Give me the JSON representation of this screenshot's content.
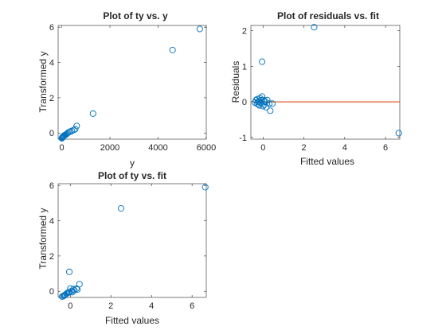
{
  "colors": {
    "markers": "#0072bd",
    "reference_line": "#d95319",
    "axes": "#262626",
    "background": "#ffffff"
  },
  "chart_data": [
    {
      "type": "scatter",
      "title": "Plot of ty vs. y",
      "xlabel": "y",
      "ylabel": "Transformed y",
      "xlim": [
        -150,
        6000
      ],
      "ylim": [
        -0.35,
        6.1
      ],
      "xticks": [
        0,
        2000,
        4000,
        6000
      ],
      "yticks": [
        0,
        2,
        4,
        6
      ],
      "xtick_labels": [
        "0",
        "2000",
        "4000",
        "6000"
      ],
      "ytick_labels": [
        "0",
        "2",
        "4",
        "6"
      ],
      "grid": false,
      "series": [
        {
          "marker": "circle",
          "x": [
            5,
            15,
            25,
            40,
            60,
            80,
            100,
            130,
            160,
            200,
            250,
            300,
            350,
            420,
            500,
            560,
            620,
            1300,
            4600,
            5730
          ],
          "y": [
            -0.3,
            -0.28,
            -0.25,
            -0.22,
            -0.2,
            -0.17,
            -0.15,
            -0.12,
            -0.1,
            -0.06,
            0.0,
            0.05,
            0.08,
            0.12,
            0.17,
            0.22,
            0.4,
            1.1,
            4.7,
            5.9
          ]
        }
      ]
    },
    {
      "type": "scatter",
      "title": "Plot of residuals vs. fit",
      "xlabel": "Fitted values",
      "ylabel": "Residuals",
      "xlim": [
        -0.6,
        6.7
      ],
      "ylim": [
        -1.05,
        2.15
      ],
      "xticks": [
        0,
        2,
        4,
        6
      ],
      "yticks": [
        -1,
        0,
        1,
        2
      ],
      "xtick_labels": [
        "0",
        "2",
        "4",
        "6"
      ],
      "ytick_labels": [
        "-1",
        "0",
        "1",
        "2"
      ],
      "grid": false,
      "reference_line": {
        "y": 0
      },
      "series": [
        {
          "marker": "circle",
          "x": [
            -0.4,
            -0.35,
            -0.3,
            -0.28,
            -0.25,
            -0.22,
            -0.2,
            -0.18,
            -0.15,
            -0.12,
            -0.1,
            -0.05,
            0.0,
            0.02,
            0.05,
            0.08,
            0.1,
            0.15,
            0.2,
            0.3,
            0.35,
            0.45,
            -0.05,
            2.5,
            6.65
          ],
          "y": [
            -0.02,
            0.05,
            -0.05,
            0.08,
            0.0,
            -0.08,
            0.03,
            -0.1,
            0.1,
            -0.03,
            0.05,
            0.15,
            -0.12,
            0.05,
            -0.08,
            0.02,
            0.0,
            -0.15,
            0.05,
            -0.05,
            -0.25,
            -0.05,
            1.13,
            2.1,
            -0.88
          ]
        }
      ]
    },
    {
      "type": "scatter",
      "title": "Plot of ty vs. fit",
      "xlabel": "Fitted values",
      "ylabel": "Transformed y",
      "xlim": [
        -0.6,
        6.7
      ],
      "ylim": [
        -0.35,
        6.1
      ],
      "xticks": [
        0,
        2,
        4,
        6
      ],
      "yticks": [
        0,
        2,
        4,
        6
      ],
      "xtick_labels": [
        "0",
        "2",
        "4",
        "6"
      ],
      "ytick_labels": [
        "0",
        "2",
        "4",
        "6"
      ],
      "grid": false,
      "series": [
        {
          "marker": "circle",
          "x": [
            -0.4,
            -0.35,
            -0.3,
            -0.28,
            -0.25,
            -0.2,
            -0.15,
            -0.1,
            -0.05,
            0.0,
            0.05,
            0.1,
            0.15,
            0.2,
            0.3,
            0.35,
            0.45,
            -0.05,
            2.5,
            6.65
          ],
          "y": [
            -0.3,
            -0.28,
            -0.25,
            -0.22,
            -0.2,
            -0.15,
            -0.1,
            -0.08,
            -0.05,
            0.15,
            0.0,
            -0.05,
            0.12,
            0.05,
            0.15,
            0.1,
            0.4,
            1.1,
            4.7,
            5.9
          ]
        }
      ]
    }
  ]
}
